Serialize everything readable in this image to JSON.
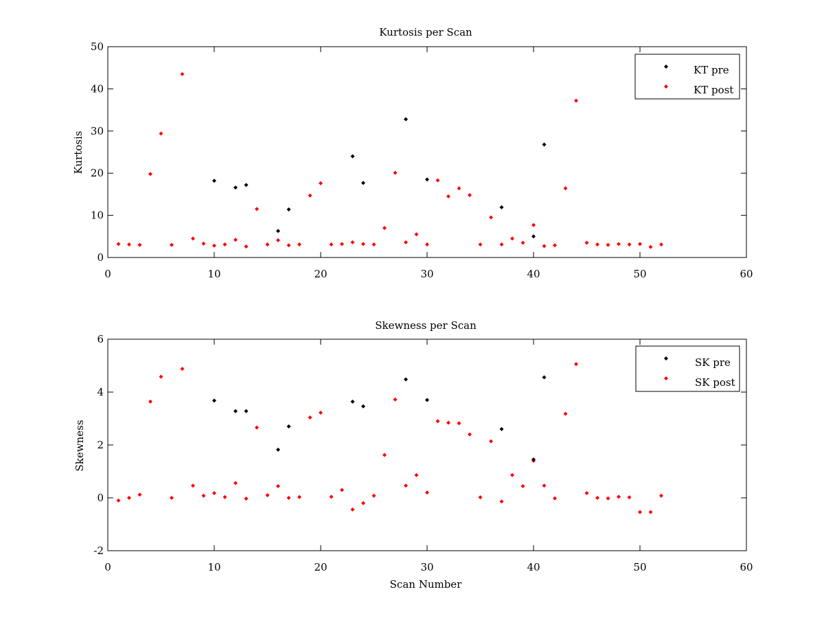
{
  "chart_data": [
    {
      "type": "scatter",
      "title": "Kurtosis per Scan",
      "xlabel": "",
      "ylabel": "Kurtosis",
      "xlim": [
        0,
        60
      ],
      "ylim": [
        0,
        50
      ],
      "xticks": [
        "0",
        "10",
        "20",
        "30",
        "40",
        "50",
        "60"
      ],
      "yticks": [
        "0",
        "10",
        "20",
        "30",
        "40",
        "50"
      ],
      "grid": false,
      "legend_position": "top-right",
      "series": [
        {
          "name": "KT pre",
          "color": "#000000",
          "points": [
            [
              10,
              18.2
            ],
            [
              12,
              16.6
            ],
            [
              13,
              17.2
            ],
            [
              16,
              6.3
            ],
            [
              17,
              11.4
            ],
            [
              23,
              24.0
            ],
            [
              24,
              17.7
            ],
            [
              28,
              32.8
            ],
            [
              30,
              18.5
            ],
            [
              37,
              11.9
            ],
            [
              40,
              5.0
            ],
            [
              41,
              26.8
            ]
          ]
        },
        {
          "name": "KT post",
          "color": "#ff0000",
          "points": [
            [
              1,
              3.2
            ],
            [
              2,
              3.1
            ],
            [
              3,
              3.0
            ],
            [
              4,
              19.8
            ],
            [
              5,
              29.4
            ],
            [
              6,
              3.0
            ],
            [
              7,
              43.5
            ],
            [
              8,
              4.5
            ],
            [
              9,
              3.3
            ],
            [
              10,
              2.8
            ],
            [
              11,
              3.1
            ],
            [
              12,
              4.2
            ],
            [
              13,
              2.6
            ],
            [
              14,
              11.5
            ],
            [
              15,
              3.1
            ],
            [
              16,
              4.1
            ],
            [
              17,
              2.9
            ],
            [
              18,
              3.1
            ],
            [
              19,
              14.7
            ],
            [
              20,
              17.6
            ],
            [
              21,
              3.1
            ],
            [
              22,
              3.2
            ],
            [
              23,
              3.6
            ],
            [
              24,
              3.2
            ],
            [
              25,
              3.1
            ],
            [
              26,
              7.0
            ],
            [
              27,
              20.1
            ],
            [
              28,
              3.6
            ],
            [
              29,
              5.5
            ],
            [
              30,
              3.1
            ],
            [
              31,
              18.3
            ],
            [
              32,
              14.5
            ],
            [
              33,
              16.4
            ],
            [
              34,
              14.8
            ],
            [
              35,
              3.1
            ],
            [
              36,
              9.5
            ],
            [
              37,
              3.1
            ],
            [
              38,
              4.5
            ],
            [
              39,
              3.5
            ],
            [
              40,
              7.7
            ],
            [
              41,
              2.7
            ],
            [
              42,
              2.9
            ],
            [
              43,
              16.4
            ],
            [
              44,
              37.2
            ],
            [
              45,
              3.5
            ],
            [
              46,
              3.1
            ],
            [
              47,
              3.0
            ],
            [
              48,
              3.2
            ],
            [
              49,
              3.1
            ],
            [
              50,
              3.2
            ],
            [
              51,
              2.5
            ],
            [
              52,
              3.1
            ]
          ]
        }
      ]
    },
    {
      "type": "scatter",
      "title": "Skewness per Scan",
      "xlabel": "Scan Number",
      "ylabel": "Skewness",
      "xlim": [
        0,
        60
      ],
      "ylim": [
        -2,
        6
      ],
      "xticks": [
        "0",
        "10",
        "20",
        "30",
        "40",
        "50",
        "60"
      ],
      "yticks": [
        "-2",
        "0",
        "2",
        "4",
        "6"
      ],
      "grid": false,
      "legend_position": "top-right",
      "series": [
        {
          "name": "SK pre",
          "color": "#000000",
          "points": [
            [
              10,
              3.68
            ],
            [
              12,
              3.28
            ],
            [
              13,
              3.28
            ],
            [
              16,
              1.82
            ],
            [
              17,
              2.7
            ],
            [
              23,
              3.64
            ],
            [
              24,
              3.46
            ],
            [
              28,
              4.48
            ],
            [
              30,
              3.7
            ],
            [
              37,
              2.6
            ],
            [
              40,
              1.45
            ],
            [
              41,
              4.56
            ]
          ]
        },
        {
          "name": "SK post",
          "color": "#ff0000",
          "points": [
            [
              1,
              -0.1
            ],
            [
              2,
              0.0
            ],
            [
              3,
              0.12
            ],
            [
              4,
              3.64
            ],
            [
              5,
              4.58
            ],
            [
              6,
              0.0
            ],
            [
              7,
              4.88
            ],
            [
              8,
              0.46
            ],
            [
              9,
              0.08
            ],
            [
              10,
              0.18
            ],
            [
              11,
              0.03
            ],
            [
              12,
              0.56
            ],
            [
              13,
              -0.03
            ],
            [
              14,
              2.66
            ],
            [
              15,
              0.1
            ],
            [
              16,
              0.44
            ],
            [
              17,
              0.0
            ],
            [
              18,
              0.03
            ],
            [
              19,
              3.04
            ],
            [
              20,
              3.22
            ],
            [
              21,
              0.04
            ],
            [
              22,
              0.3
            ],
            [
              23,
              -0.44
            ],
            [
              24,
              -0.2
            ],
            [
              25,
              0.08
            ],
            [
              26,
              1.62
            ],
            [
              27,
              3.72
            ],
            [
              28,
              0.46
            ],
            [
              29,
              0.86
            ],
            [
              30,
              0.2
            ],
            [
              31,
              2.9
            ],
            [
              32,
              2.84
            ],
            [
              33,
              2.82
            ],
            [
              34,
              2.4
            ],
            [
              35,
              0.02
            ],
            [
              36,
              2.14
            ],
            [
              37,
              -0.14
            ],
            [
              38,
              0.86
            ],
            [
              39,
              0.44
            ],
            [
              40,
              1.4
            ],
            [
              41,
              0.46
            ],
            [
              42,
              -0.02
            ],
            [
              43,
              3.18
            ],
            [
              44,
              5.06
            ],
            [
              45,
              0.18
            ],
            [
              46,
              0.0
            ],
            [
              47,
              -0.02
            ],
            [
              48,
              0.04
            ],
            [
              49,
              0.02
            ],
            [
              50,
              -0.54
            ],
            [
              51,
              -0.54
            ],
            [
              52,
              0.08
            ]
          ]
        }
      ]
    }
  ]
}
